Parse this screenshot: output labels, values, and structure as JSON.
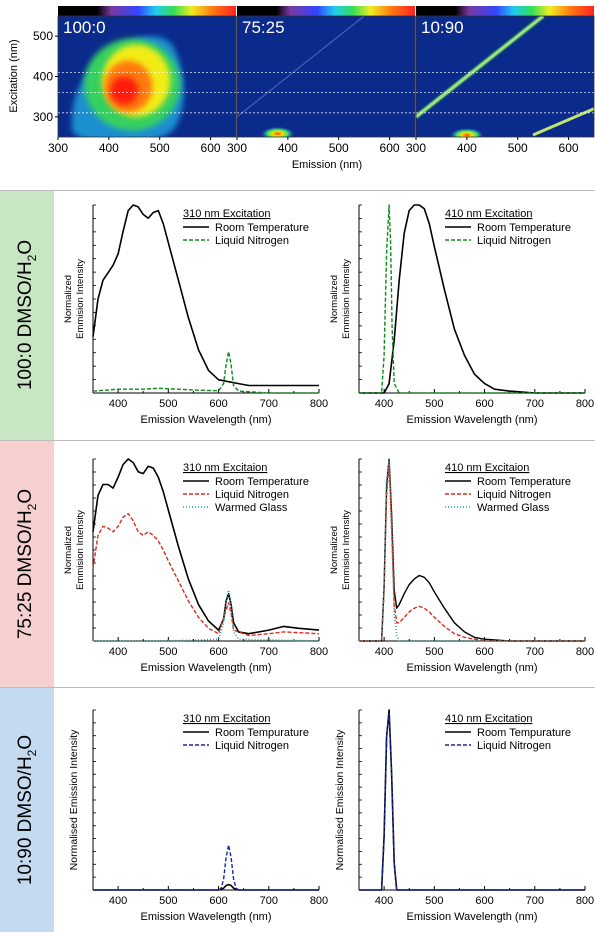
{
  "colors": {
    "row_green": "#c8e6c4",
    "row_red": "#f6cfcf",
    "row_blue": "#c4daf0",
    "black": "#000000",
    "green": "#0c8c1a",
    "red": "#e0281c",
    "teal": "#2aa89a",
    "navy": "#1a2a9c"
  },
  "rows": [
    {
      "label_main": "100:0 DMSO/H",
      "label_sub": "2",
      "label_end": "O"
    },
    {
      "label_main": "75:25 DMSO/H",
      "label_sub": "2",
      "label_end": "O"
    },
    {
      "label_main": "10:90 DMSO/H",
      "label_sub": "2",
      "label_end": "O"
    }
  ],
  "chart_data": [
    {
      "type": "heatmap",
      "panels": [
        {
          "ratio": "100:0",
          "features": [
            {
              "kind": "blob",
              "excitation_center": 370,
              "emission_center": 450,
              "peak": true
            }
          ]
        },
        {
          "ratio": "75:25",
          "features": [
            {
              "kind": "spot",
              "emission": 380,
              "excitation": 258
            },
            {
              "kind": "scatter-line"
            }
          ]
        },
        {
          "ratio": "10:90",
          "features": [
            {
              "kind": "spot",
              "emission": 400,
              "excitation": 255
            },
            {
              "kind": "scatter-line"
            },
            {
              "kind": "second-order-line"
            }
          ]
        }
      ],
      "xlabel": "Emission (nm)",
      "ylabel": "Excitation (nm)",
      "x_ticks": [
        300,
        400,
        500,
        600
      ],
      "y_ticks": [
        300,
        400,
        500
      ],
      "xlim": [
        300,
        650
      ],
      "ylim": [
        250,
        550
      ],
      "guide_lines_excitation": [
        410,
        360,
        310
      ]
    },
    {
      "type": "line",
      "row": 0,
      "legend_title": "310 nm Excitation",
      "xlabel": "Emission Wavelength (nm)",
      "ylabel": "Normalized\nEmmision Intensity",
      "x_ticks": [
        400,
        500,
        600,
        700,
        800
      ],
      "xlim": [
        350,
        800
      ],
      "ylim": [
        0,
        1
      ],
      "series": [
        {
          "name": "Room Temperature",
          "color": "black",
          "dash": "solid",
          "width": 1.6,
          "x": [
            350,
            360,
            370,
            380,
            390,
            400,
            410,
            420,
            430,
            440,
            450,
            460,
            470,
            480,
            490,
            500,
            520,
            540,
            560,
            580,
            600,
            620,
            640,
            660,
            700,
            750,
            800
          ],
          "y": [
            0.3,
            0.5,
            0.6,
            0.64,
            0.68,
            0.74,
            0.86,
            0.97,
            1.0,
            0.99,
            0.95,
            0.93,
            0.96,
            0.97,
            0.9,
            0.8,
            0.6,
            0.4,
            0.23,
            0.12,
            0.07,
            0.06,
            0.05,
            0.04,
            0.04,
            0.04,
            0.04
          ]
        },
        {
          "name": "Liquid Nitrogen",
          "color": "green",
          "dash": "4,2",
          "width": 1.4,
          "x": [
            350,
            400,
            450,
            480,
            520,
            560,
            600,
            610,
            615,
            620,
            625,
            630,
            640,
            700,
            800
          ],
          "y": [
            0.01,
            0.02,
            0.02,
            0.025,
            0.02,
            0.015,
            0.012,
            0.05,
            0.15,
            0.22,
            0.15,
            0.04,
            0.01,
            0.0,
            0.0
          ]
        }
      ]
    },
    {
      "type": "line",
      "row": 0,
      "legend_title": "410 nm Excitation",
      "xlabel": "Emission Wavelength (nm)",
      "ylabel": "Normalized\nEmmision Intensity",
      "x_ticks": [
        400,
        500,
        600,
        700,
        800
      ],
      "xlim": [
        350,
        800
      ],
      "ylim": [
        0,
        1
      ],
      "series": [
        {
          "name": "Room Temperature",
          "color": "black",
          "dash": "solid",
          "width": 1.6,
          "x": [
            350,
            400,
            410,
            420,
            430,
            440,
            450,
            460,
            470,
            480,
            490,
            500,
            520,
            540,
            560,
            580,
            600,
            620,
            650,
            700,
            800
          ],
          "y": [
            0.0,
            0.0,
            0.05,
            0.28,
            0.6,
            0.85,
            0.97,
            1.0,
            1.0,
            0.98,
            0.9,
            0.78,
            0.55,
            0.34,
            0.2,
            0.1,
            0.05,
            0.02,
            0.01,
            0.0,
            0.0
          ]
        },
        {
          "name": "Liquid Nitrogen",
          "color": "green",
          "dash": "4,2",
          "width": 1.4,
          "x": [
            350,
            395,
            400,
            405,
            410,
            413,
            416,
            420,
            430,
            800
          ],
          "y": [
            0.0,
            0.0,
            0.2,
            0.75,
            1.0,
            0.8,
            0.35,
            0.05,
            0.0,
            0.0
          ]
        }
      ]
    },
    {
      "type": "line",
      "row": 1,
      "legend_title": "310 nm Excitaion",
      "xlabel": "Emission Wavelength (nm)",
      "ylabel": "Normalized\nEmmision Intensity",
      "x_ticks": [
        400,
        500,
        600,
        700,
        800
      ],
      "xlim": [
        350,
        800
      ],
      "ylim": [
        0,
        1
      ],
      "series": [
        {
          "name": "Room Temperature",
          "color": "black",
          "dash": "solid",
          "width": 1.6,
          "x": [
            350,
            360,
            370,
            380,
            390,
            400,
            410,
            420,
            430,
            440,
            450,
            460,
            470,
            480,
            490,
            500,
            520,
            540,
            560,
            580,
            600,
            610,
            615,
            620,
            625,
            630,
            640,
            660,
            700,
            730,
            760,
            800
          ],
          "y": [
            0.6,
            0.8,
            0.86,
            0.86,
            0.84,
            0.9,
            0.97,
            1.0,
            0.98,
            0.93,
            0.92,
            0.96,
            0.95,
            0.9,
            0.82,
            0.72,
            0.52,
            0.34,
            0.2,
            0.11,
            0.06,
            0.12,
            0.22,
            0.26,
            0.2,
            0.1,
            0.05,
            0.04,
            0.06,
            0.08,
            0.07,
            0.06
          ]
        },
        {
          "name": "Liquid Nitrogen",
          "color": "red",
          "dash": "4,2",
          "width": 1.4,
          "x": [
            350,
            360,
            370,
            380,
            390,
            400,
            410,
            420,
            430,
            440,
            450,
            460,
            470,
            480,
            490,
            500,
            520,
            540,
            560,
            580,
            600,
            615,
            620,
            625,
            630,
            660,
            700,
            730,
            800
          ],
          "y": [
            0.4,
            0.58,
            0.63,
            0.62,
            0.6,
            0.63,
            0.68,
            0.7,
            0.66,
            0.6,
            0.58,
            0.6,
            0.58,
            0.55,
            0.5,
            0.44,
            0.33,
            0.22,
            0.13,
            0.07,
            0.04,
            0.17,
            0.21,
            0.15,
            0.06,
            0.03,
            0.04,
            0.05,
            0.04
          ]
        },
        {
          "name": "Warmed Glass",
          "color": "teal",
          "dash": "1,2",
          "width": 1.6,
          "x": [
            350,
            500,
            600,
            610,
            615,
            620,
            625,
            630,
            640,
            800
          ],
          "y": [
            0.0,
            0.0,
            0.01,
            0.1,
            0.22,
            0.28,
            0.2,
            0.05,
            0.01,
            0.0
          ]
        }
      ]
    },
    {
      "type": "line",
      "row": 1,
      "legend_title": "410 nm Excitaion",
      "xlabel": "Emission Wavelength (nm)",
      "ylabel": "Normalized\nEmmision Intensity",
      "x_ticks": [
        400,
        500,
        600,
        700,
        800
      ],
      "xlim": [
        350,
        800
      ],
      "ylim": [
        0,
        1
      ],
      "series": [
        {
          "name": "Room Temperature",
          "color": "black",
          "dash": "solid",
          "width": 1.4,
          "x": [
            350,
            395,
            400,
            405,
            410,
            415,
            420,
            425,
            430,
            440,
            450,
            460,
            470,
            480,
            490,
            500,
            520,
            540,
            560,
            580,
            600,
            650,
            800
          ],
          "y": [
            0.0,
            0.0,
            0.3,
            0.85,
            1.0,
            0.7,
            0.28,
            0.18,
            0.2,
            0.26,
            0.31,
            0.34,
            0.36,
            0.35,
            0.32,
            0.27,
            0.18,
            0.1,
            0.05,
            0.02,
            0.01,
            0.0,
            0.0
          ]
        },
        {
          "name": "Liquid Nitrogen",
          "color": "red",
          "dash": "4,2",
          "width": 1.4,
          "x": [
            350,
            395,
            400,
            405,
            410,
            415,
            420,
            425,
            430,
            440,
            450,
            460,
            470,
            480,
            490,
            500,
            520,
            540,
            560,
            580,
            600,
            800
          ],
          "y": [
            0.0,
            0.0,
            0.28,
            0.8,
            0.98,
            0.62,
            0.2,
            0.1,
            0.1,
            0.13,
            0.16,
            0.18,
            0.19,
            0.18,
            0.16,
            0.13,
            0.08,
            0.04,
            0.02,
            0.01,
            0.0,
            0.0
          ]
        },
        {
          "name": "Warmed Glass",
          "color": "teal",
          "dash": "1,2",
          "width": 1.6,
          "x": [
            350,
            395,
            400,
            405,
            410,
            415,
            420,
            425,
            430,
            800
          ],
          "y": [
            0.0,
            0.0,
            0.3,
            0.88,
            1.0,
            0.65,
            0.15,
            0.03,
            0.0,
            0.0
          ]
        }
      ]
    },
    {
      "type": "line",
      "row": 2,
      "legend_title": "310 nm Excitation",
      "xlabel": "Emission Wavelength (nm)",
      "ylabel": "Normalised Emission Intensity",
      "x_ticks": [
        400,
        500,
        600,
        700,
        800
      ],
      "xlim": [
        350,
        800
      ],
      "ylim": [
        0,
        1
      ],
      "series": [
        {
          "name": "Room Tempurature",
          "color": "black",
          "dash": "solid",
          "width": 1.6,
          "x": [
            350,
            600,
            610,
            615,
            620,
            625,
            630,
            640,
            800
          ],
          "y": [
            0.0,
            0.0,
            0.01,
            0.025,
            0.03,
            0.025,
            0.01,
            0.0,
            0.0
          ]
        },
        {
          "name": "Liquid Nitrogen",
          "color": "navy",
          "dash": "4,2",
          "width": 1.4,
          "x": [
            350,
            600,
            605,
            610,
            615,
            620,
            625,
            630,
            635,
            640,
            800
          ],
          "y": [
            0.0,
            0.0,
            0.01,
            0.06,
            0.18,
            0.25,
            0.18,
            0.06,
            0.01,
            0.0,
            0.0
          ]
        }
      ]
    },
    {
      "type": "line",
      "row": 2,
      "legend_title": "410 nm Excitation",
      "xlabel": "Emission Wavelength (nm)",
      "ylabel": "Normalised Emission Intensity",
      "x_ticks": [
        400,
        500,
        600,
        700,
        800
      ],
      "xlim": [
        350,
        800
      ],
      "ylim": [
        0,
        1
      ],
      "series": [
        {
          "name": "Room Tempurature",
          "color": "black",
          "dash": "solid",
          "width": 1.6,
          "x": [
            350,
            395,
            400,
            405,
            410,
            415,
            420,
            425,
            800
          ],
          "y": [
            0.0,
            0.0,
            0.3,
            0.85,
            1.0,
            0.65,
            0.15,
            0.0,
            0.0
          ]
        },
        {
          "name": "Liquid Nitrogen",
          "color": "navy",
          "dash": "4,2",
          "width": 1.4,
          "x": [
            350,
            395,
            400,
            405,
            410,
            415,
            420,
            425,
            800
          ],
          "y": [
            0.0,
            0.0,
            0.3,
            0.85,
            0.98,
            0.65,
            0.15,
            0.0,
            0.0
          ]
        }
      ]
    }
  ]
}
